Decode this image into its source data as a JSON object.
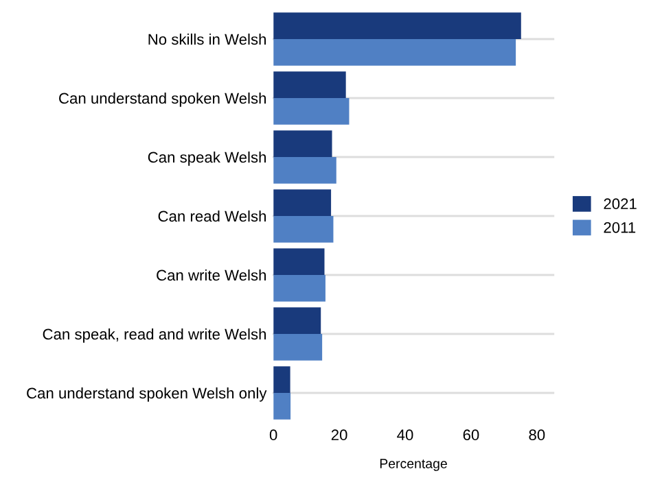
{
  "chart_data": {
    "type": "bar",
    "orientation": "horizontal",
    "xlabel": "Percentage",
    "categories": [
      "No skills in Welsh",
      "Can understand spoken Welsh",
      "Can speak Welsh",
      "Can read Welsh",
      "Can write Welsh",
      "Can speak, read and write Welsh",
      "Can understand spoken Welsh only"
    ],
    "series": [
      {
        "name": "2021",
        "color": "#193a7c",
        "values": [
          75.2,
          22.0,
          17.8,
          17.5,
          15.5,
          14.4,
          5.1
        ]
      },
      {
        "name": "2011",
        "color": "#5080c4",
        "values": [
          73.6,
          23.0,
          19.1,
          18.2,
          15.8,
          14.8,
          5.2
        ]
      }
    ],
    "xlim": [
      0,
      85
    ],
    "xticks": [
      0,
      20,
      40,
      60,
      80
    ],
    "grid": "y",
    "legend": "right"
  }
}
